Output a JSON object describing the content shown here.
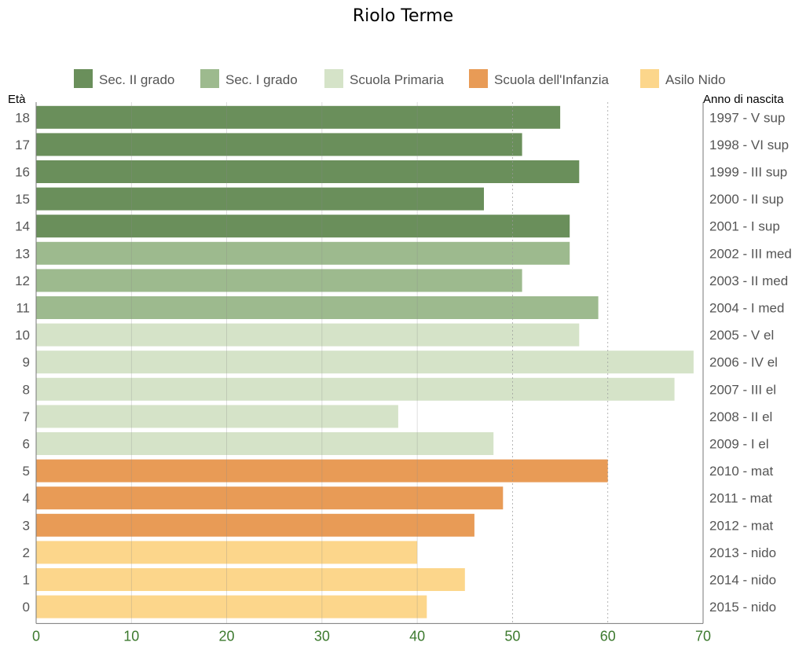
{
  "title": "Riolo Terme",
  "colors": {
    "sec2": "#6a8f5b",
    "sec1": "#9dba8e",
    "primaria": "#d5e3c8",
    "infanzia": "#e89b56",
    "nido": "#fcd68b",
    "axis_text": "#555555",
    "x_tick_text": "#3d7a2f"
  },
  "chart_data": {
    "type": "bar",
    "orientation": "horizontal",
    "ylabel_left": "Età",
    "ylabel_right": "Anno di nascita",
    "xlim": [
      0,
      70
    ],
    "x_ticks": [
      0,
      10,
      20,
      30,
      40,
      50,
      60,
      70
    ],
    "legend_position": "top",
    "legend": [
      {
        "key": "sec2",
        "label": "Sec. II grado"
      },
      {
        "key": "sec1",
        "label": "Sec. I grado"
      },
      {
        "key": "primaria",
        "label": "Scuola Primaria"
      },
      {
        "key": "infanzia",
        "label": "Scuola dell'Infanzia"
      },
      {
        "key": "nido",
        "label": "Asilo Nido"
      }
    ],
    "bars": [
      {
        "age": "18",
        "year_label": "1997 - V sup",
        "value": 55,
        "group": "sec2"
      },
      {
        "age": "17",
        "year_label": "1998 - VI sup",
        "value": 51,
        "group": "sec2"
      },
      {
        "age": "16",
        "year_label": "1999 - III sup",
        "value": 57,
        "group": "sec2"
      },
      {
        "age": "15",
        "year_label": "2000 - II sup",
        "value": 47,
        "group": "sec2"
      },
      {
        "age": "14",
        "year_label": "2001 - I sup",
        "value": 56,
        "group": "sec2"
      },
      {
        "age": "13",
        "year_label": "2002 - III med",
        "value": 56,
        "group": "sec1"
      },
      {
        "age": "12",
        "year_label": "2003 - II med",
        "value": 51,
        "group": "sec1"
      },
      {
        "age": "11",
        "year_label": "2004 - I med",
        "value": 59,
        "group": "sec1"
      },
      {
        "age": "10",
        "year_label": "2005 - V el",
        "value": 57,
        "group": "primaria"
      },
      {
        "age": "9",
        "year_label": "2006 - IV el",
        "value": 69,
        "group": "primaria"
      },
      {
        "age": "8",
        "year_label": "2007 - III el",
        "value": 67,
        "group": "primaria"
      },
      {
        "age": "7",
        "year_label": "2008 - II el",
        "value": 38,
        "group": "primaria"
      },
      {
        "age": "6",
        "year_label": "2009 - I el",
        "value": 48,
        "group": "primaria"
      },
      {
        "age": "5",
        "year_label": "2010 - mat",
        "value": 60,
        "group": "infanzia"
      },
      {
        "age": "4",
        "year_label": "2011 - mat",
        "value": 49,
        "group": "infanzia"
      },
      {
        "age": "3",
        "year_label": "2012 - mat",
        "value": 46,
        "group": "infanzia"
      },
      {
        "age": "2",
        "year_label": "2013 - nido",
        "value": 40,
        "group": "nido"
      },
      {
        "age": "1",
        "year_label": "2014 - nido",
        "value": 45,
        "group": "nido"
      },
      {
        "age": "0",
        "year_label": "2015 - nido",
        "value": 41,
        "group": "nido"
      }
    ]
  }
}
